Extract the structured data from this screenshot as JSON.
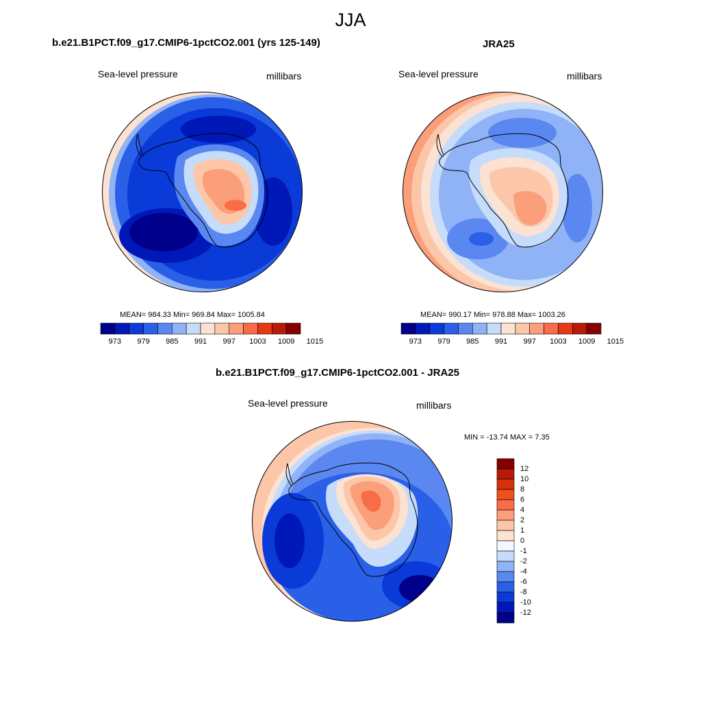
{
  "season_title": "JJA",
  "panels": [
    {
      "title": "b.e21.B1PCT.f09_g17.CMIP6-1pctCO2.001 (yrs 125-149)",
      "variable": "Sea-level pressure",
      "units": "millibars",
      "stats": "MEAN= 984.33  Min= 969.84  Max= 1005.84"
    },
    {
      "title": "JRA25",
      "variable": "Sea-level pressure",
      "units": "millibars",
      "stats": "MEAN= 990.17  Min= 978.88  Max= 1003.26"
    },
    {
      "title": "b.e21.B1PCT.f09_g17.CMIP6-1pctCO2.001 - JRA25",
      "variable": "Sea-level pressure",
      "units": "millibars",
      "stats": "MIN = -13.74 MAX =   7.35"
    }
  ],
  "colorbar_top": {
    "tick_labels": [
      "973",
      "979",
      "985",
      "991",
      "997",
      "1003",
      "1009",
      "1015"
    ],
    "colors": [
      "#00008b",
      "#0018b8",
      "#0a3ad8",
      "#2a5fe8",
      "#5a88f0",
      "#8fb3f6",
      "#c5dcfa",
      "#fbe2d2",
      "#fcc6a9",
      "#fb9e7a",
      "#f86c48",
      "#e63a17",
      "#b81a05",
      "#850000"
    ]
  },
  "colorbar_diff": {
    "tick_labels": [
      "12",
      "10",
      "8",
      "6",
      "4",
      "2",
      "1",
      "0",
      "-1",
      "-2",
      "-4",
      "-6",
      "-8",
      "-10",
      "-12"
    ],
    "colors": [
      "#850000",
      "#b81a05",
      "#d8300a",
      "#f0501e",
      "#f86c48",
      "#fb9e7a",
      "#fcc6a9",
      "#fbe2d2",
      "#f4f8ff",
      "#c5dcfa",
      "#8fb3f6",
      "#5a88f0",
      "#2a5fe8",
      "#0a3ad8",
      "#0018b8",
      "#00008b"
    ]
  },
  "colors": {
    "deep_blue": "#00008b",
    "blue": "#1a4ee0",
    "light_blue": "#8fb3f6",
    "pale": "#fbe2d2",
    "salmon": "#fb9e7a",
    "red": "#e63a17"
  }
}
